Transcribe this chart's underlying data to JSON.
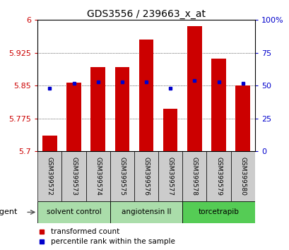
{
  "title": "GDS3556 / 239663_x_at",
  "samples": [
    "GSM399572",
    "GSM399573",
    "GSM399574",
    "GSM399575",
    "GSM399576",
    "GSM399577",
    "GSM399578",
    "GSM399579",
    "GSM399580"
  ],
  "bar_values": [
    5.735,
    5.857,
    5.893,
    5.893,
    5.956,
    5.797,
    5.986,
    5.912,
    5.851
  ],
  "percentile_values": [
    48,
    52,
    53,
    53,
    53,
    48,
    54,
    53,
    52
  ],
  "y_min": 5.7,
  "y_max": 6.0,
  "y_ticks": [
    5.7,
    5.775,
    5.85,
    5.925,
    6.0
  ],
  "y_tick_labels": [
    "5.7",
    "5.775",
    "5.85",
    "5.925",
    "6"
  ],
  "y2_ticks": [
    0,
    25,
    50,
    75,
    100
  ],
  "y2_tick_labels": [
    "0",
    "25",
    "50",
    "75",
    "100%"
  ],
  "bar_color": "#CC0000",
  "blue_color": "#0000CC",
  "group_spans": [
    [
      0,
      2,
      "solvent control",
      "#aaddaa"
    ],
    [
      3,
      5,
      "angiotensin II",
      "#aaddaa"
    ],
    [
      6,
      8,
      "torcetrapib",
      "#55cc55"
    ]
  ],
  "sample_bg_color": "#cccccc",
  "legend_bar_label": "transformed count",
  "legend_dot_label": "percentile rank within the sample",
  "agent_label": "agent",
  "left_tick_color": "#CC0000",
  "right_tick_color": "#0000CC",
  "bar_width": 0.6,
  "figsize": [
    4.1,
    3.54
  ],
  "dpi": 100
}
